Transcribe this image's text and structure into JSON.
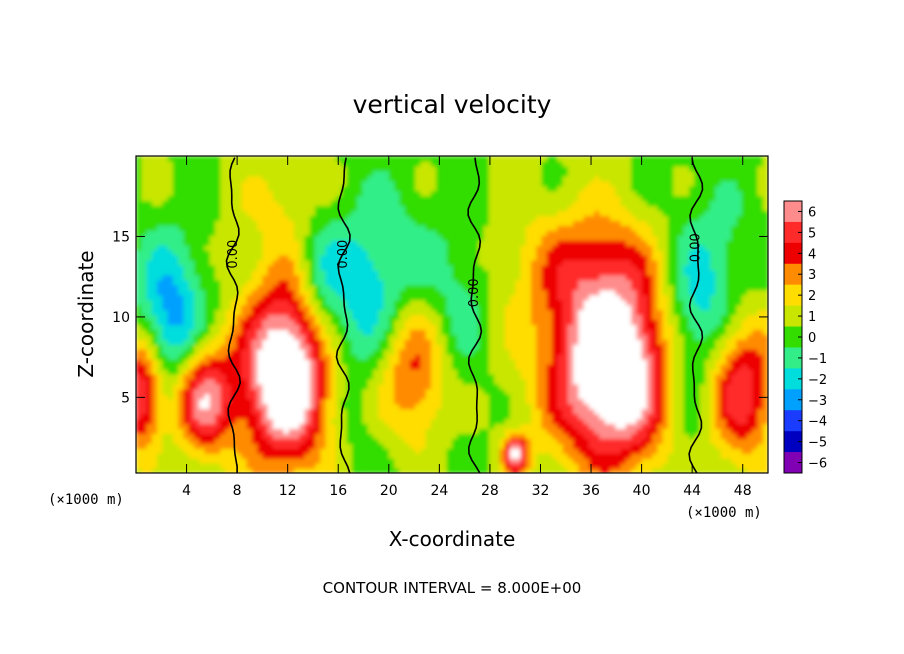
{
  "chart_data": {
    "type": "heatmap",
    "title": "vertical velocity",
    "xlabel": "X-coordinate",
    "ylabel": "Z-coordinate",
    "x_unit": "(×1000 m)",
    "y_unit": "(×1000 m)",
    "xlim": [
      0,
      50
    ],
    "ylim": [
      0.3,
      20
    ],
    "xticks": [
      4,
      8,
      12,
      16,
      20,
      24,
      28,
      32,
      36,
      40,
      44,
      48
    ],
    "yticks": [
      5,
      10,
      15
    ],
    "colorbar": {
      "levels": [
        6,
        5,
        4,
        3,
        2,
        1,
        0,
        -1,
        -2,
        -3,
        -4,
        -5,
        -6
      ],
      "labels": [
        "6",
        "5",
        "4",
        "3",
        "2",
        "1",
        "0",
        "−1",
        "−2",
        "−3",
        "−4",
        "−5",
        "−6"
      ],
      "colors": [
        "#ff8c8c",
        "#ff2a2a",
        "#ee0000",
        "#ff8c00",
        "#ffdd00",
        "#c8e600",
        "#33dd00",
        "#33ee88",
        "#00dddd",
        "#00a0ff",
        "#1a3cff",
        "#0000c0",
        "#8000b4"
      ],
      "saturation_color": "#ffffff"
    },
    "contour_interval": "CONTOUR INTERVAL = 8.000E+00",
    "contour_labels": [
      {
        "x": 7.7,
        "z": 13.9,
        "text": "0.00"
      },
      {
        "x": 16.4,
        "z": 13.9,
        "text": "0.00"
      },
      {
        "x": 26.8,
        "z": 11.5,
        "text": "0.00"
      },
      {
        "x": 44.3,
        "z": 14.3,
        "text": "0.00"
      }
    ],
    "features": [
      {
        "kind": "updraft",
        "x": 0.5,
        "z": 5.5,
        "rx": 2.0,
        "rz": 4.0,
        "w": 7
      },
      {
        "kind": "updraft",
        "x": 5.0,
        "z": 5.0,
        "rx": 2.6,
        "rz": 3.5,
        "w": 7
      },
      {
        "kind": "updraft",
        "x": 12.0,
        "z": 6.5,
        "rx": 3.5,
        "rz": 5.5,
        "w": 9
      },
      {
        "kind": "updraft",
        "x": 22.0,
        "z": 7.0,
        "rx": 4.5,
        "rz": 5.0,
        "w": 7
      },
      {
        "kind": "updraft",
        "x": 38.0,
        "z": 6.5,
        "rx": 5.0,
        "rz": 5.5,
        "w": 9
      },
      {
        "kind": "updraft",
        "x": 47.5,
        "z": 6.0,
        "rx": 3.0,
        "rz": 5.0,
        "w": 7
      },
      {
        "kind": "downdraft",
        "x": 2.5,
        "z": 8.0,
        "rx": 3.0,
        "rz": 6.0,
        "w": -5
      },
      {
        "kind": "downdraft",
        "x": 19.0,
        "z": 9.0,
        "rx": 4.0,
        "rz": 7.0,
        "w": -5
      },
      {
        "kind": "downdraft",
        "x": 25.0,
        "z": 8.0,
        "rx": 3.0,
        "rz": 6.0,
        "w": -4
      },
      {
        "kind": "downdraft",
        "x": 45.0,
        "z": 8.5,
        "rx": 4.0,
        "rz": 7.0,
        "w": -5
      },
      {
        "kind": "downdraft",
        "x": 14.5,
        "z": 12.0,
        "rx": 2.0,
        "rz": 5.0,
        "w": -2
      },
      {
        "kind": "weak",
        "x": 36.0,
        "z": 13.0,
        "rx": 6.0,
        "rz": 4.0,
        "w": 3
      },
      {
        "kind": "weak",
        "x": 12.0,
        "z": 17.0,
        "rx": 4.0,
        "rz": 3.0,
        "w": 1.2
      },
      {
        "kind": "weak",
        "x": 30.0,
        "z": 1.5,
        "rx": 1.0,
        "rz": 1.2,
        "w": 6
      }
    ]
  }
}
